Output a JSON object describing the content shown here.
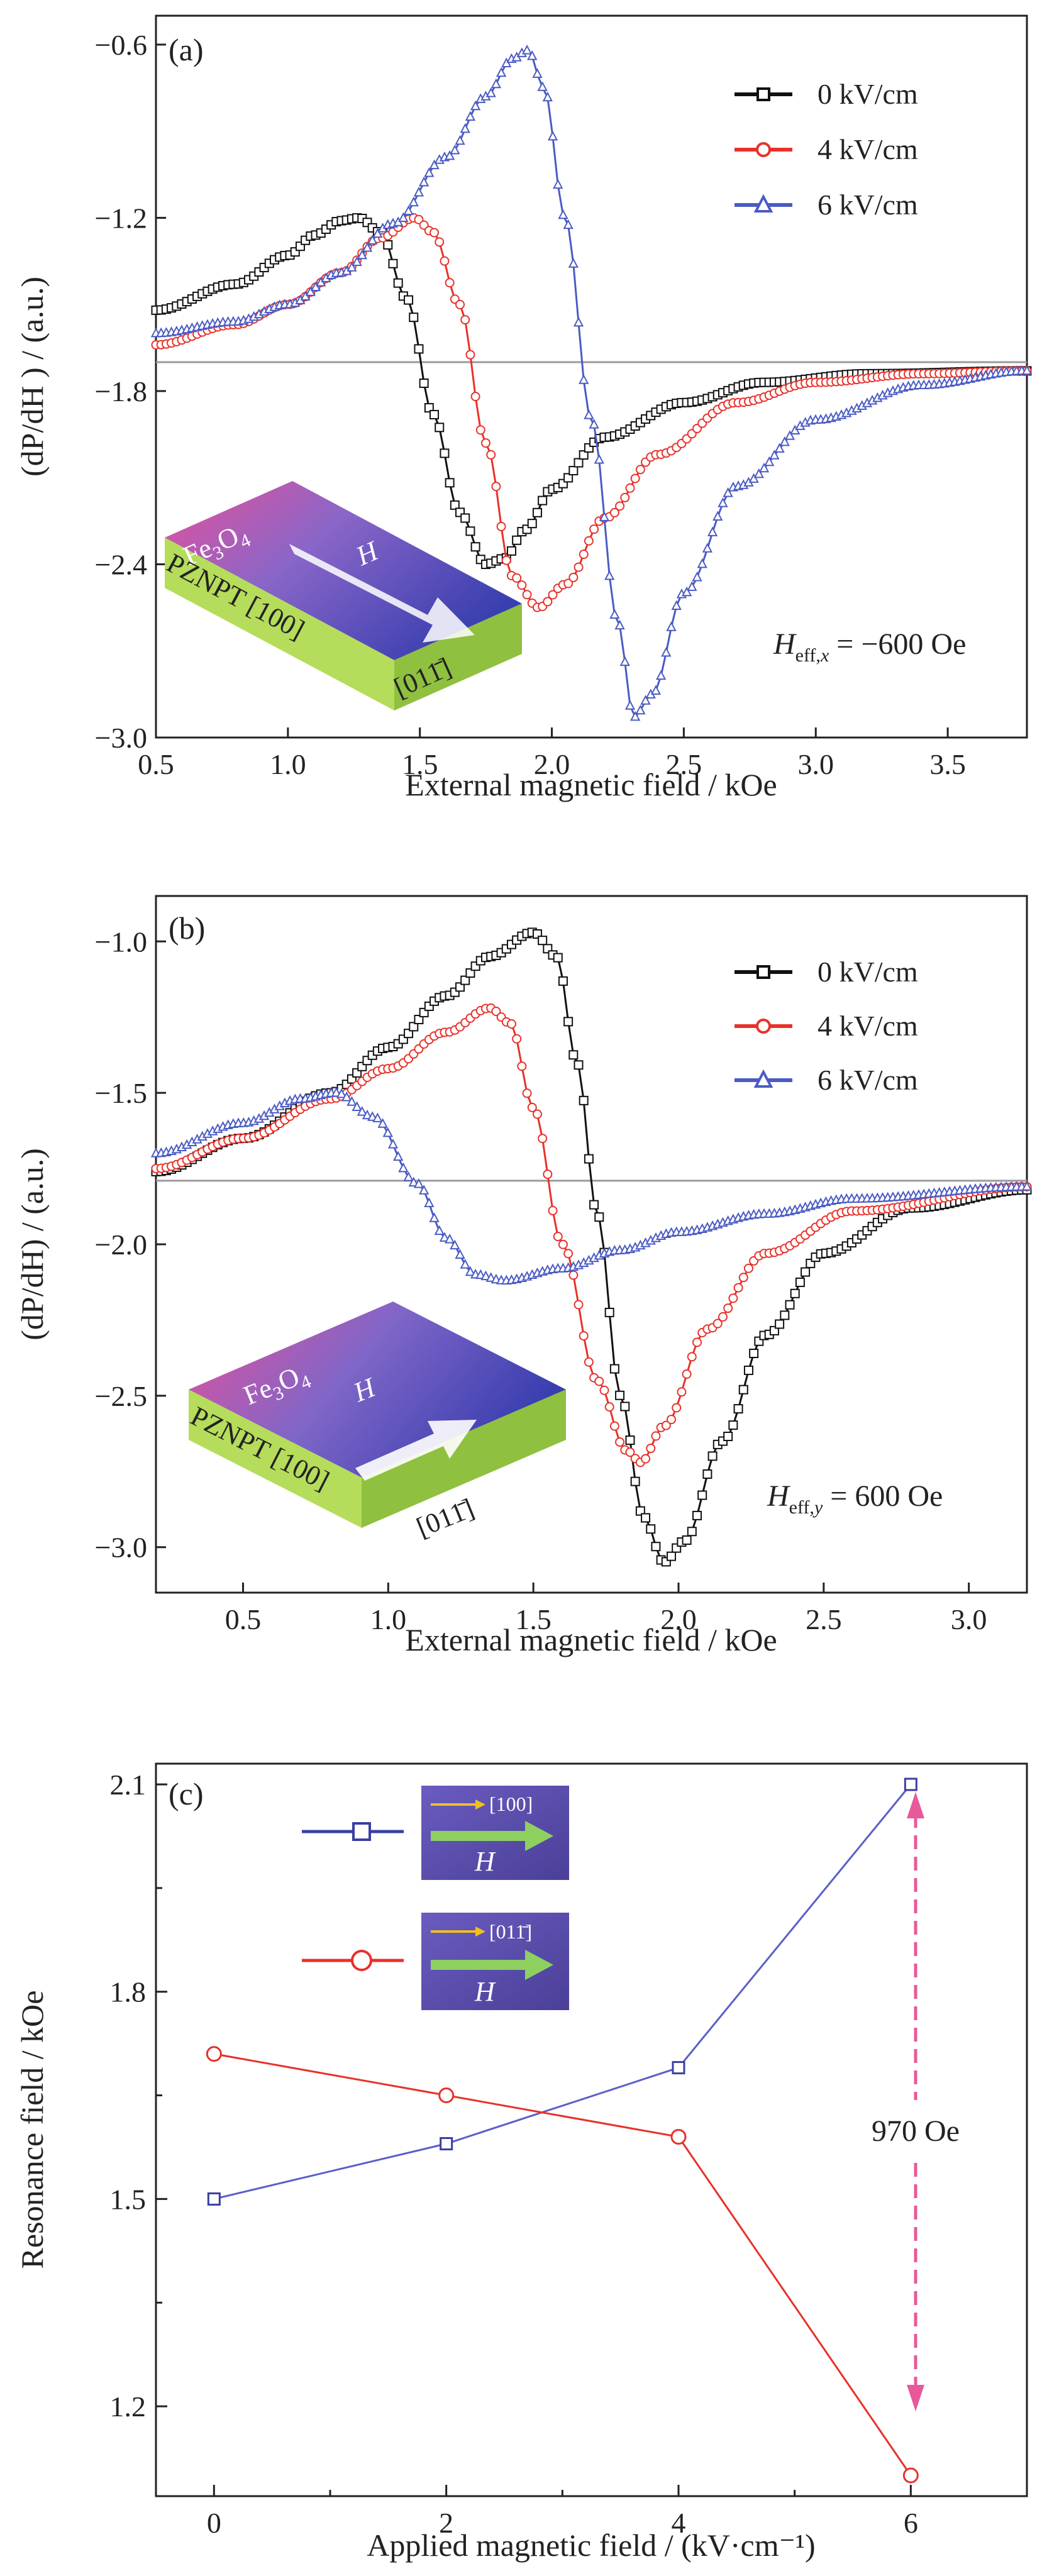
{
  "colors": {
    "black": "#111111",
    "red": "#e8312a",
    "blue": "#4a5bc4",
    "baseline": "#9a9a9a",
    "arrow_pink": "#e8589a",
    "chip_bg": "#5a4fa8",
    "pzn_green": "#b5dc5a",
    "inset_pink": "#e8509a",
    "inset_blue": "#3a3fb0"
  },
  "chart_data": [
    {
      "panel": "(a)",
      "type": "line",
      "xlabel": "External magnetic field / kOe",
      "ylabel": "(dP/dH ) / (a.u.)",
      "xlim": [
        0.5,
        3.8
      ],
      "ylim": [
        -3.0,
        -0.5
      ],
      "xticks": [
        "0.5",
        "1.0",
        "1.5",
        "2.0",
        "2.5",
        "3.0",
        "3.5"
      ],
      "yticks": [
        "−0.6",
        "−1.2",
        "−1.8",
        "−2.4",
        "−3.0"
      ],
      "baseline_y": -1.7,
      "legend_position": "top-right",
      "annotation": "H_eff,x = −600 Oe",
      "inset": {
        "film": "Fe3O4",
        "substrate": "PZNPT [100]",
        "direction": "[011̄]",
        "field": "H"
      },
      "series": [
        {
          "name": "0 kV/cm",
          "marker": "square",
          "color": "black",
          "points": [
            [
              0.5,
              -1.52
            ],
            [
              0.8,
              -1.43
            ],
            [
              1.0,
              -1.33
            ],
            [
              1.1,
              -1.26
            ],
            [
              1.2,
              -1.21
            ],
            [
              1.27,
              -1.2
            ],
            [
              1.35,
              -1.25
            ],
            [
              1.45,
              -1.48
            ],
            [
              1.55,
              -1.88
            ],
            [
              1.65,
              -2.22
            ],
            [
              1.75,
              -2.4
            ],
            [
              1.82,
              -2.38
            ],
            [
              1.9,
              -2.28
            ],
            [
              2.0,
              -2.14
            ],
            [
              2.2,
              -1.96
            ],
            [
              2.5,
              -1.84
            ],
            [
              2.8,
              -1.77
            ],
            [
              3.2,
              -1.74
            ],
            [
              3.8,
              -1.73
            ]
          ]
        },
        {
          "name": "4 kV/cm",
          "marker": "circle",
          "color": "red",
          "points": [
            [
              0.5,
              -1.64
            ],
            [
              0.8,
              -1.57
            ],
            [
              1.0,
              -1.5
            ],
            [
              1.2,
              -1.39
            ],
            [
              1.35,
              -1.27
            ],
            [
              1.48,
              -1.2
            ],
            [
              1.55,
              -1.25
            ],
            [
              1.65,
              -1.5
            ],
            [
              1.75,
              -1.98
            ],
            [
              1.85,
              -2.44
            ],
            [
              1.95,
              -2.55
            ],
            [
              2.05,
              -2.47
            ],
            [
              2.2,
              -2.24
            ],
            [
              2.4,
              -2.02
            ],
            [
              2.7,
              -1.84
            ],
            [
              3.0,
              -1.77
            ],
            [
              3.4,
              -1.74
            ],
            [
              3.8,
              -1.73
            ]
          ]
        },
        {
          "name": "6 kV/cm",
          "marker": "triangle",
          "color": "blue",
          "points": [
            [
              0.5,
              -1.6
            ],
            [
              0.8,
              -1.56
            ],
            [
              1.0,
              -1.5
            ],
            [
              1.2,
              -1.39
            ],
            [
              1.4,
              -1.22
            ],
            [
              1.6,
              -0.99
            ],
            [
              1.75,
              -0.78
            ],
            [
              1.85,
              -0.65
            ],
            [
              1.91,
              -0.62
            ],
            [
              1.97,
              -0.75
            ],
            [
              2.05,
              -1.2
            ],
            [
              2.15,
              -1.9
            ],
            [
              2.25,
              -2.6
            ],
            [
              2.31,
              -2.93
            ],
            [
              2.38,
              -2.85
            ],
            [
              2.5,
              -2.5
            ],
            [
              2.7,
              -2.13
            ],
            [
              3.0,
              -1.9
            ],
            [
              3.4,
              -1.78
            ],
            [
              3.8,
              -1.73
            ]
          ]
        }
      ]
    },
    {
      "panel": "(b)",
      "type": "line",
      "xlabel": "External magnetic field / kOe",
      "ylabel": "(dP/dH) / (a.u.)",
      "xlim": [
        0.2,
        3.2
      ],
      "ylim": [
        -3.15,
        -0.85
      ],
      "xticks": [
        "0.5",
        "1.0",
        "1.5",
        "2.0",
        "2.5",
        "3.0"
      ],
      "yticks": [
        "−1.0",
        "−1.5",
        "−2.0",
        "−2.5",
        "−3.0"
      ],
      "baseline_y": -1.79,
      "legend_position": "top-right",
      "annotation": "H_eff,y = 600 Oe",
      "inset": {
        "film": "Fe3O4",
        "substrate": "PZNPT [100]",
        "direction": "[011̄]",
        "field": "H"
      },
      "series": [
        {
          "name": "0 kV/cm",
          "marker": "square",
          "color": "black",
          "points": [
            [
              0.2,
              -1.76
            ],
            [
              0.5,
              -1.65
            ],
            [
              0.8,
              -1.5
            ],
            [
              1.0,
              -1.35
            ],
            [
              1.2,
              -1.18
            ],
            [
              1.35,
              -1.05
            ],
            [
              1.5,
              -0.97
            ],
            [
              1.58,
              -1.05
            ],
            [
              1.65,
              -1.4
            ],
            [
              1.72,
              -1.9
            ],
            [
              1.8,
              -2.5
            ],
            [
              1.88,
              -2.9
            ],
            [
              1.95,
              -3.05
            ],
            [
              2.02,
              -2.98
            ],
            [
              2.15,
              -2.65
            ],
            [
              2.3,
              -2.3
            ],
            [
              2.5,
              -2.03
            ],
            [
              2.8,
              -1.88
            ],
            [
              3.2,
              -1.82
            ]
          ]
        },
        {
          "name": "4 kV/cm",
          "marker": "circle",
          "color": "red",
          "points": [
            [
              0.2,
              -1.75
            ],
            [
              0.5,
              -1.65
            ],
            [
              0.8,
              -1.52
            ],
            [
              1.0,
              -1.42
            ],
            [
              1.2,
              -1.3
            ],
            [
              1.35,
              -1.22
            ],
            [
              1.42,
              -1.27
            ],
            [
              1.5,
              -1.55
            ],
            [
              1.6,
              -2.0
            ],
            [
              1.72,
              -2.45
            ],
            [
              1.82,
              -2.68
            ],
            [
              1.87,
              -2.72
            ],
            [
              1.95,
              -2.6
            ],
            [
              2.1,
              -2.28
            ],
            [
              2.3,
              -2.03
            ],
            [
              2.6,
              -1.89
            ],
            [
              3.2,
              -1.81
            ]
          ]
        },
        {
          "name": "6 kV/cm",
          "marker": "triangle",
          "color": "blue",
          "points": [
            [
              0.2,
              -1.7
            ],
            [
              0.5,
              -1.6
            ],
            [
              0.7,
              -1.52
            ],
            [
              0.82,
              -1.5
            ],
            [
              0.95,
              -1.58
            ],
            [
              1.1,
              -1.8
            ],
            [
              1.2,
              -1.98
            ],
            [
              1.3,
              -2.1
            ],
            [
              1.4,
              -2.12
            ],
            [
              1.6,
              -2.08
            ],
            [
              1.8,
              -2.02
            ],
            [
              2.0,
              -1.96
            ],
            [
              2.3,
              -1.9
            ],
            [
              2.6,
              -1.85
            ],
            [
              3.2,
              -1.81
            ]
          ]
        }
      ]
    },
    {
      "panel": "(c)",
      "type": "line",
      "xlabel": "Applied magnetic field / (kV·cm⁻¹)",
      "ylabel": "Resonance field / kOe",
      "xlim": [
        -0.5,
        7.0
      ],
      "ylim": [
        1.07,
        2.13
      ],
      "xticks": [
        "0",
        "2",
        "4",
        "6"
      ],
      "yticks": [
        "1.2",
        "1.5",
        "1.8",
        "2.1"
      ],
      "legend_position": "top-left",
      "annotation": "970 Oe",
      "series": [
        {
          "direction": "[100]",
          "field": "H",
          "marker": "square",
          "color": "blue",
          "x": [
            0,
            2,
            4,
            6
          ],
          "y": [
            1.5,
            1.58,
            1.69,
            2.1
          ]
        },
        {
          "direction": "[011̄]",
          "field": "H",
          "marker": "circle",
          "color": "red",
          "x": [
            0,
            2,
            4,
            6
          ],
          "y": [
            1.71,
            1.65,
            1.59,
            1.1
          ]
        }
      ]
    }
  ]
}
